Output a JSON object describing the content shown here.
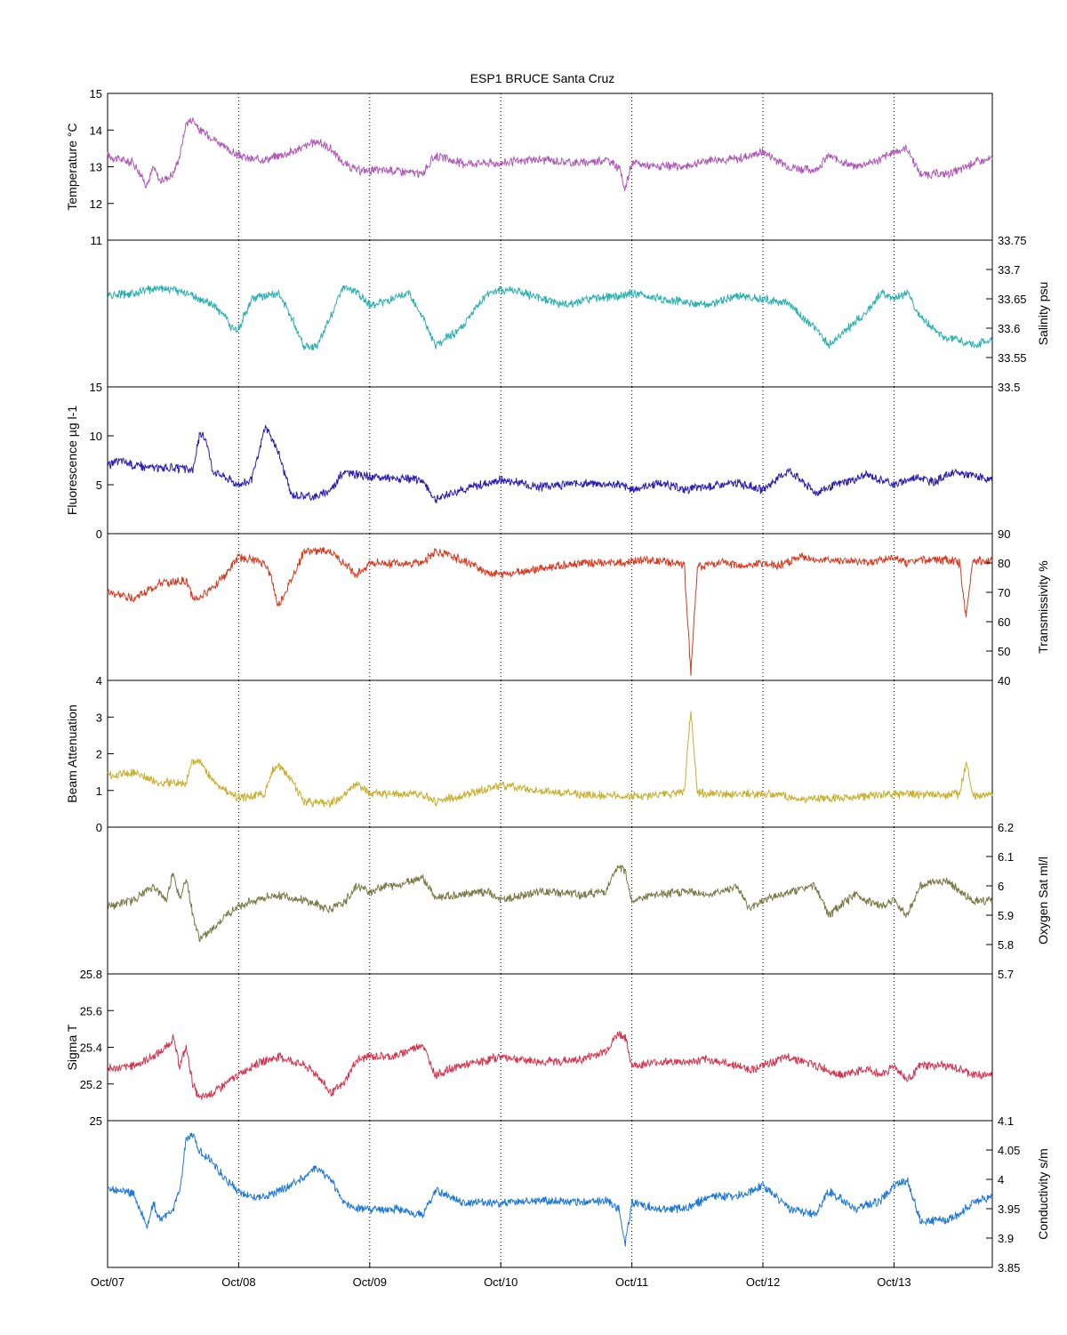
{
  "figure": {
    "title": "ESP1 BRUCE Santa Cruz",
    "x_ticks": [
      "Oct/07",
      "Oct/08",
      "Oct/09",
      "Oct/10",
      "Oct/11",
      "Oct/12",
      "Oct/13"
    ]
  },
  "chart_data": [
    {
      "type": "line",
      "name": "temperature",
      "ylabel": "Temperature °C",
      "axis_side": "left",
      "ylim": [
        11,
        15
      ],
      "yticks": [
        11,
        12,
        13,
        14,
        15
      ],
      "color": "#b05ab8",
      "xlim": [
        0,
        6.75
      ],
      "x": [
        0,
        0.1,
        0.2,
        0.3,
        0.35,
        0.4,
        0.5,
        0.55,
        0.6,
        0.65,
        0.7,
        0.8,
        0.9,
        1.0,
        1.1,
        1.2,
        1.4,
        1.6,
        1.7,
        1.8,
        1.9,
        2.0,
        2.2,
        2.4,
        2.5,
        2.7,
        3.0,
        3.3,
        3.6,
        3.8,
        3.9,
        3.95,
        4.0,
        4.2,
        4.4,
        4.6,
        4.8,
        5.0,
        5.2,
        5.4,
        5.5,
        5.7,
        5.9,
        6.0,
        6.1,
        6.2,
        6.4,
        6.5,
        6.6,
        6.75
      ],
      "values": [
        13.3,
        13.2,
        13.1,
        12.5,
        13.0,
        12.6,
        12.8,
        13.3,
        14.2,
        14.3,
        14.0,
        13.8,
        13.5,
        13.3,
        13.2,
        13.2,
        13.4,
        13.7,
        13.5,
        13.1,
        12.9,
        12.9,
        12.9,
        12.8,
        13.3,
        13.1,
        13.1,
        13.2,
        13.1,
        13.2,
        13.0,
        12.4,
        13.1,
        13.0,
        13.0,
        13.2,
        13.2,
        13.4,
        13.0,
        12.9,
        13.3,
        13.0,
        13.2,
        13.4,
        13.5,
        12.8,
        12.8,
        12.9,
        13.1,
        13.2
      ]
    },
    {
      "type": "line",
      "name": "salinity",
      "ylabel": "Salinity psu",
      "axis_side": "right",
      "ylim": [
        33.5,
        33.75
      ],
      "yticks": [
        33.5,
        33.55,
        33.6,
        33.65,
        33.7,
        33.75
      ],
      "color": "#2bb0b0",
      "xlim": [
        0,
        6.75
      ],
      "x": [
        0,
        0.2,
        0.4,
        0.6,
        0.8,
        0.9,
        0.95,
        1.0,
        1.1,
        1.3,
        1.4,
        1.5,
        1.6,
        1.7,
        1.8,
        1.9,
        2.0,
        2.2,
        2.3,
        2.4,
        2.5,
        2.7,
        2.9,
        3.0,
        3.1,
        3.3,
        3.5,
        3.7,
        3.9,
        4.0,
        4.2,
        4.4,
        4.6,
        4.8,
        5.0,
        5.2,
        5.4,
        5.5,
        5.6,
        5.8,
        5.9,
        6.0,
        6.1,
        6.2,
        6.3,
        6.4,
        6.5,
        6.6,
        6.75
      ],
      "values": [
        33.655,
        33.66,
        33.67,
        33.66,
        33.64,
        33.62,
        33.6,
        33.6,
        33.65,
        33.66,
        33.62,
        33.57,
        33.57,
        33.62,
        33.67,
        33.66,
        33.64,
        33.65,
        33.66,
        33.62,
        33.57,
        33.6,
        33.66,
        33.665,
        33.665,
        33.65,
        33.64,
        33.65,
        33.655,
        33.66,
        33.65,
        33.645,
        33.64,
        33.655,
        33.65,
        33.64,
        33.6,
        33.57,
        33.59,
        33.63,
        33.66,
        33.65,
        33.66,
        33.62,
        33.6,
        33.58,
        33.58,
        33.57,
        33.58
      ]
    },
    {
      "type": "line",
      "name": "fluorescence",
      "ylabel": "Fluorescence µg l-1",
      "axis_side": "left",
      "ylim": [
        0,
        15
      ],
      "yticks": [
        0,
        5,
        10,
        15
      ],
      "color": "#2a1cb0",
      "xlim": [
        0,
        6.75
      ],
      "x": [
        0,
        0.1,
        0.2,
        0.3,
        0.5,
        0.65,
        0.7,
        0.75,
        0.8,
        1.0,
        1.1,
        1.15,
        1.2,
        1.3,
        1.4,
        1.6,
        1.7,
        1.8,
        2.0,
        2.2,
        2.4,
        2.5,
        2.7,
        3.0,
        3.3,
        3.6,
        3.9,
        4.0,
        4.2,
        4.4,
        4.6,
        4.8,
        5.0,
        5.1,
        5.2,
        5.4,
        5.6,
        5.8,
        6.0,
        6.1,
        6.2,
        6.3,
        6.4,
        6.5,
        6.75
      ],
      "values": [
        7.0,
        7.5,
        7.0,
        6.8,
        6.7,
        6.5,
        10.0,
        9.8,
        6.5,
        5.0,
        5.5,
        8.0,
        11.0,
        8.5,
        4.0,
        3.8,
        4.5,
        6.3,
        5.8,
        5.6,
        5.5,
        3.5,
        4.5,
        5.5,
        4.8,
        5.2,
        5.0,
        4.5,
        5.2,
        4.5,
        4.8,
        5.2,
        4.5,
        5.5,
        6.5,
        4.2,
        5.2,
        6.0,
        5.0,
        5.5,
        5.8,
        5.2,
        6.0,
        6.2,
        5.5
      ]
    },
    {
      "type": "line",
      "name": "transmissivity",
      "ylabel": "Transmissivity %",
      "axis_side": "right",
      "ylim": [
        40,
        90
      ],
      "yticks": [
        40,
        50,
        60,
        70,
        80,
        90
      ],
      "color": "#d83a22",
      "xlim": [
        0,
        6.75
      ],
      "x": [
        0,
        0.2,
        0.4,
        0.6,
        0.65,
        0.7,
        0.8,
        0.9,
        1.0,
        1.1,
        1.2,
        1.25,
        1.3,
        1.4,
        1.5,
        1.7,
        1.8,
        1.9,
        2.0,
        2.2,
        2.4,
        2.5,
        2.7,
        2.9,
        3.0,
        3.3,
        3.6,
        3.9,
        4.1,
        4.3,
        4.4,
        4.45,
        4.5,
        4.7,
        4.9,
        5.0,
        5.1,
        5.3,
        5.4,
        5.6,
        5.8,
        6.0,
        6.1,
        6.2,
        6.4,
        6.5,
        6.55,
        6.6,
        6.65,
        6.7,
        6.75
      ],
      "values": [
        70,
        68,
        73,
        74,
        68,
        68,
        72,
        76,
        82,
        81,
        80,
        75,
        65,
        74,
        84,
        84,
        80,
        76,
        80,
        80,
        80,
        84,
        81,
        77,
        76,
        78,
        80,
        80,
        81,
        80,
        79,
        43,
        79,
        80,
        79,
        80,
        79,
        82,
        81,
        81,
        80,
        82,
        80,
        81,
        81,
        80,
        61,
        81,
        81,
        80,
        81
      ]
    },
    {
      "type": "line",
      "name": "beam-attenuation",
      "ylabel": "Beam Attenuation",
      "axis_side": "left",
      "ylim": [
        0,
        4
      ],
      "yticks": [
        0,
        1,
        2,
        3,
        4
      ],
      "color": "#c8b030",
      "xlim": [
        0,
        6.75
      ],
      "x": [
        0,
        0.2,
        0.4,
        0.6,
        0.65,
        0.7,
        0.8,
        0.9,
        1.0,
        1.1,
        1.2,
        1.25,
        1.3,
        1.4,
        1.5,
        1.7,
        1.8,
        1.9,
        2.0,
        2.2,
        2.4,
        2.5,
        2.7,
        2.9,
        3.0,
        3.3,
        3.6,
        3.9,
        4.1,
        4.3,
        4.4,
        4.45,
        4.5,
        4.7,
        4.9,
        5.0,
        5.1,
        5.3,
        5.4,
        5.6,
        5.8,
        6.0,
        6.1,
        6.2,
        6.4,
        6.5,
        6.55,
        6.6,
        6.65,
        6.7,
        6.75
      ],
      "values": [
        1.4,
        1.5,
        1.2,
        1.2,
        1.8,
        1.8,
        1.3,
        1.0,
        0.8,
        0.85,
        0.9,
        1.5,
        1.7,
        1.3,
        0.7,
        0.65,
        0.85,
        1.2,
        0.9,
        0.9,
        0.9,
        0.7,
        0.85,
        1.05,
        1.15,
        1.0,
        0.9,
        0.85,
        0.85,
        0.9,
        0.95,
        3.2,
        0.95,
        0.9,
        0.9,
        0.9,
        0.9,
        0.75,
        0.8,
        0.8,
        0.85,
        0.9,
        0.9,
        0.9,
        0.85,
        0.9,
        1.8,
        0.85,
        0.85,
        0.9,
        0.85
      ]
    },
    {
      "type": "line",
      "name": "oxygen-sat",
      "ylabel": "Oxygen Sat ml/l",
      "axis_side": "right",
      "ylim": [
        5.7,
        6.2
      ],
      "yticks": [
        5.7,
        5.8,
        5.9,
        6.0,
        6.1,
        6.2
      ],
      "color": "#7a7a48",
      "xlim": [
        0,
        6.75
      ],
      "x": [
        0,
        0.2,
        0.35,
        0.45,
        0.5,
        0.55,
        0.6,
        0.65,
        0.7,
        0.8,
        0.9,
        1.0,
        1.1,
        1.3,
        1.5,
        1.7,
        1.8,
        1.9,
        2.0,
        2.1,
        2.2,
        2.4,
        2.5,
        2.7,
        2.9,
        3.0,
        3.3,
        3.6,
        3.8,
        3.9,
        3.95,
        4.0,
        4.2,
        4.4,
        4.6,
        4.8,
        4.9,
        5.0,
        5.2,
        5.4,
        5.5,
        5.7,
        5.9,
        6.0,
        6.1,
        6.2,
        6.4,
        6.5,
        6.6,
        6.75
      ],
      "values": [
        5.93,
        5.95,
        6.0,
        5.95,
        6.05,
        5.95,
        6.03,
        5.9,
        5.82,
        5.85,
        5.9,
        5.93,
        5.95,
        5.97,
        5.95,
        5.92,
        5.94,
        6.0,
        5.98,
        6.0,
        6.0,
        6.03,
        5.96,
        5.97,
        5.98,
        5.95,
        5.98,
        5.97,
        5.98,
        6.07,
        6.05,
        5.95,
        5.97,
        5.98,
        5.97,
        6.0,
        5.92,
        5.95,
        5.98,
        6.0,
        5.9,
        5.97,
        5.93,
        5.95,
        5.9,
        6.0,
        6.02,
        5.98,
        5.95,
        5.95
      ]
    },
    {
      "type": "line",
      "name": "sigma-t",
      "ylabel": "Sigma T",
      "axis_side": "left",
      "ylim": [
        25,
        25.8
      ],
      "yticks": [
        25,
        25.2,
        25.4,
        25.6,
        25.8
      ],
      "color": "#d6344f",
      "xlim": [
        0,
        6.75
      ],
      "x": [
        0,
        0.2,
        0.35,
        0.45,
        0.5,
        0.55,
        0.6,
        0.65,
        0.7,
        0.8,
        0.9,
        1.0,
        1.1,
        1.3,
        1.5,
        1.6,
        1.7,
        1.8,
        1.9,
        2.0,
        2.2,
        2.4,
        2.5,
        2.7,
        2.9,
        3.0,
        3.3,
        3.6,
        3.8,
        3.9,
        3.95,
        4.0,
        4.2,
        4.4,
        4.6,
        4.8,
        4.9,
        5.0,
        5.2,
        5.4,
        5.6,
        5.8,
        5.9,
        6.0,
        6.1,
        6.2,
        6.4,
        6.5,
        6.6,
        6.75
      ],
      "values": [
        25.28,
        25.3,
        25.35,
        25.4,
        25.45,
        25.3,
        25.4,
        25.2,
        25.12,
        25.15,
        25.2,
        25.25,
        25.3,
        25.35,
        25.3,
        25.25,
        25.15,
        25.2,
        25.33,
        25.35,
        25.35,
        25.42,
        25.25,
        25.3,
        25.33,
        25.35,
        25.32,
        25.33,
        25.38,
        25.48,
        25.45,
        25.3,
        25.32,
        25.32,
        25.33,
        25.3,
        25.28,
        25.3,
        25.35,
        25.3,
        25.25,
        25.28,
        25.25,
        25.3,
        25.22,
        25.3,
        25.3,
        25.28,
        25.25,
        25.25
      ]
    },
    {
      "type": "line",
      "name": "conductivity",
      "ylabel": "Conductivity s/m",
      "axis_side": "right",
      "ylim": [
        3.85,
        4.1
      ],
      "yticks": [
        3.85,
        3.9,
        3.95,
        4.0,
        4.05,
        4.1
      ],
      "color": "#1e78d6",
      "xlim": [
        0,
        6.75
      ],
      "x": [
        0,
        0.1,
        0.2,
        0.3,
        0.35,
        0.4,
        0.5,
        0.55,
        0.6,
        0.65,
        0.7,
        0.8,
        0.9,
        1.0,
        1.1,
        1.2,
        1.4,
        1.6,
        1.7,
        1.8,
        1.9,
        2.0,
        2.2,
        2.4,
        2.5,
        2.7,
        3.0,
        3.3,
        3.6,
        3.8,
        3.9,
        3.95,
        4.0,
        4.2,
        4.4,
        4.6,
        4.8,
        5.0,
        5.2,
        5.4,
        5.5,
        5.7,
        5.9,
        6.0,
        6.1,
        6.2,
        6.4,
        6.5,
        6.6,
        6.75
      ],
      "values": [
        3.985,
        3.98,
        3.975,
        3.92,
        3.96,
        3.93,
        3.95,
        3.98,
        4.07,
        4.075,
        4.05,
        4.03,
        4.0,
        3.98,
        3.97,
        3.97,
        3.99,
        4.02,
        4.0,
        3.96,
        3.95,
        3.95,
        3.95,
        3.94,
        3.98,
        3.96,
        3.96,
        3.965,
        3.96,
        3.965,
        3.95,
        3.89,
        3.96,
        3.95,
        3.95,
        3.97,
        3.97,
        3.99,
        3.95,
        3.94,
        3.98,
        3.95,
        3.965,
        3.99,
        4.0,
        3.93,
        3.93,
        3.94,
        3.96,
        3.97
      ]
    }
  ]
}
